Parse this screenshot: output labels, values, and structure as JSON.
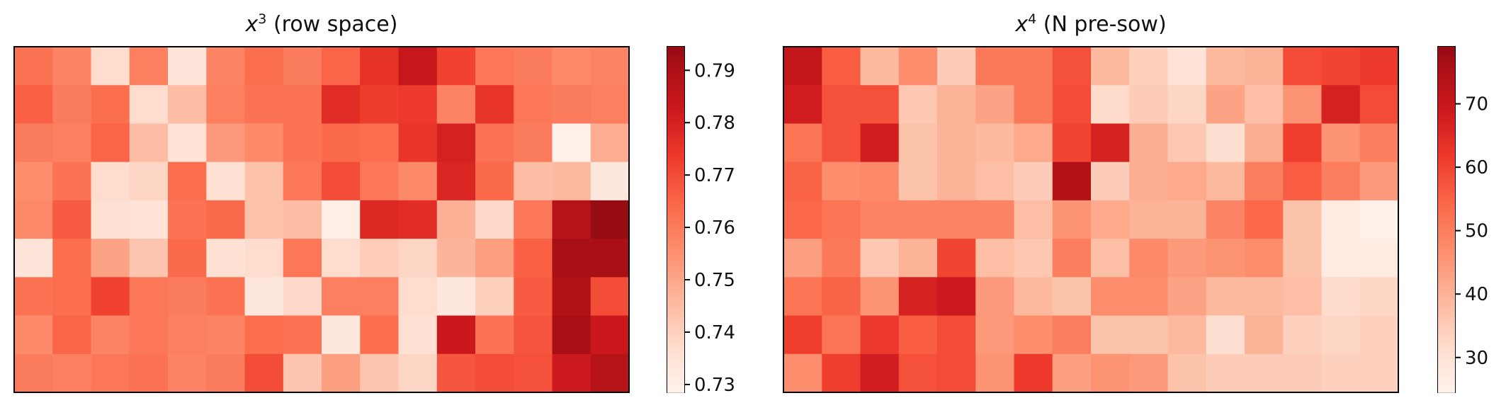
{
  "chart_data": [
    {
      "type": "heatmap",
      "title_var": "x",
      "title_exp": "3",
      "title_rest": "(row space)",
      "colormap": "Reds",
      "colorbar": {
        "min": 0.7285,
        "max": 0.7945,
        "ticks": [
          0.73,
          0.74,
          0.75,
          0.76,
          0.77,
          0.78,
          0.79
        ],
        "tick_labels": [
          "0.73",
          "0.74",
          "0.75",
          "0.76",
          "0.77",
          "0.78",
          "0.79"
        ]
      },
      "rows": 9,
      "cols": 16,
      "grid": false,
      "values": [
        [
          0.762,
          0.758,
          0.737,
          0.759,
          0.734,
          0.758,
          0.763,
          0.76,
          0.765,
          0.776,
          0.784,
          0.772,
          0.761,
          0.76,
          0.757,
          0.758
        ],
        [
          0.766,
          0.76,
          0.763,
          0.737,
          0.745,
          0.759,
          0.762,
          0.762,
          0.777,
          0.773,
          0.774,
          0.758,
          0.775,
          0.761,
          0.76,
          0.759
        ],
        [
          0.76,
          0.759,
          0.765,
          0.745,
          0.735,
          0.753,
          0.757,
          0.762,
          0.764,
          0.763,
          0.775,
          0.78,
          0.762,
          0.76,
          0.729,
          0.749
        ],
        [
          0.756,
          0.762,
          0.737,
          0.739,
          0.763,
          0.736,
          0.744,
          0.761,
          0.77,
          0.761,
          0.757,
          0.779,
          0.764,
          0.745,
          0.746,
          0.733
        ],
        [
          0.757,
          0.767,
          0.736,
          0.735,
          0.762,
          0.764,
          0.744,
          0.745,
          0.73,
          0.778,
          0.777,
          0.748,
          0.738,
          0.761,
          0.788,
          0.794
        ],
        [
          0.734,
          0.763,
          0.751,
          0.743,
          0.764,
          0.736,
          0.737,
          0.761,
          0.737,
          0.741,
          0.739,
          0.747,
          0.752,
          0.766,
          0.791,
          0.791
        ],
        [
          0.762,
          0.763,
          0.772,
          0.761,
          0.76,
          0.762,
          0.733,
          0.738,
          0.759,
          0.759,
          0.737,
          0.733,
          0.74,
          0.767,
          0.789,
          0.77
        ],
        [
          0.757,
          0.765,
          0.758,
          0.761,
          0.759,
          0.758,
          0.763,
          0.762,
          0.733,
          0.763,
          0.736,
          0.783,
          0.762,
          0.768,
          0.791,
          0.783
        ],
        [
          0.76,
          0.759,
          0.761,
          0.762,
          0.758,
          0.76,
          0.77,
          0.743,
          0.752,
          0.743,
          0.739,
          0.768,
          0.77,
          0.769,
          0.782,
          0.788
        ]
      ]
    },
    {
      "type": "heatmap",
      "title_var": "x",
      "title_exp": "4",
      "title_rest": "(N pre-sow)",
      "colormap": "Reds",
      "colorbar": {
        "min": 24.5,
        "max": 79,
        "ticks": [
          30,
          40,
          50,
          60,
          70
        ],
        "tick_labels": [
          "30",
          "40",
          "50",
          "60",
          "70"
        ]
      },
      "rows": 9,
      "cols": 16,
      "grid": false,
      "values": [
        [
          71,
          56,
          39,
          47,
          35,
          51,
          51,
          58,
          39,
          34,
          30,
          39,
          40,
          59,
          60,
          62
        ],
        [
          68,
          58,
          58,
          36,
          40,
          43,
          51,
          59,
          32,
          35,
          33,
          43,
          38,
          46,
          67,
          59
        ],
        [
          52,
          58,
          68,
          37,
          40,
          39,
          42,
          60,
          67,
          41,
          36,
          31,
          41,
          61,
          46,
          50
        ],
        [
          55,
          47,
          48,
          37,
          40,
          38,
          35,
          74,
          35,
          41,
          42,
          39,
          50,
          56,
          50,
          45
        ],
        [
          54,
          52,
          49,
          49,
          49,
          49,
          38,
          46,
          42,
          40,
          40,
          49,
          54,
          37,
          27,
          25
        ],
        [
          44,
          51,
          36,
          40,
          60,
          38,
          36,
          50,
          38,
          48,
          45,
          46,
          47,
          37,
          27,
          27
        ],
        [
          52,
          55,
          46,
          67,
          69,
          45,
          39,
          37,
          47,
          47,
          43,
          39,
          39,
          38,
          32,
          33
        ],
        [
          61,
          52,
          62,
          56,
          59,
          45,
          47,
          50,
          37,
          37,
          39,
          31,
          40,
          34,
          33,
          34
        ],
        [
          47,
          61,
          68,
          58,
          59,
          46,
          62,
          44,
          46,
          45,
          37,
          35,
          35,
          35,
          34,
          34
        ]
      ]
    }
  ]
}
